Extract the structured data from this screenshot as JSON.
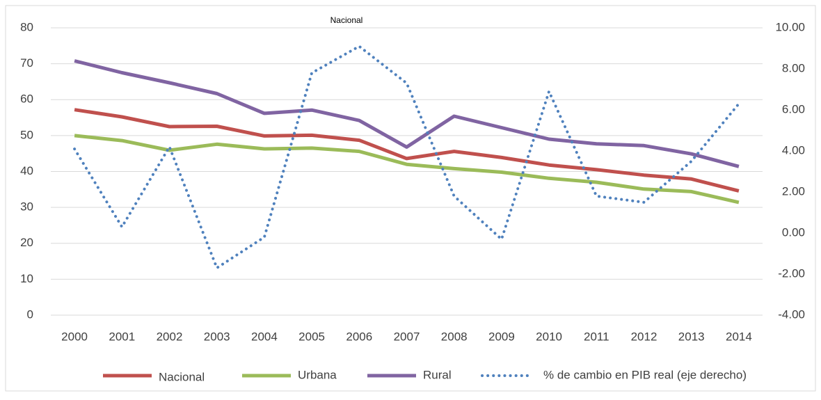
{
  "chart_data": {
    "type": "line",
    "title": "Nacional",
    "categories": [
      "2000",
      "2001",
      "2002",
      "2003",
      "2004",
      "2005",
      "2006",
      "2007",
      "2008",
      "2009",
      "2010",
      "2011",
      "2012",
      "2013",
      "2014"
    ],
    "series": [
      {
        "name": "Nacional",
        "color": "#c0504d",
        "style": "solid",
        "values": [
          57.2,
          55.2,
          52.5,
          52.6,
          49.9,
          50.1,
          48.7,
          43.6,
          45.6,
          43.9,
          41.8,
          40.5,
          39.0,
          37.9,
          34.6
        ]
      },
      {
        "name": "Urbana",
        "color": "#9bbb59",
        "style": "solid",
        "values": [
          50.0,
          48.6,
          45.9,
          47.6,
          46.3,
          46.5,
          45.6,
          42.0,
          40.8,
          39.8,
          38.1,
          37.0,
          35.1,
          34.4,
          31.4
        ]
      },
      {
        "name": "Rural",
        "color": "#8064a2",
        "style": "solid",
        "values": [
          70.8,
          67.5,
          64.7,
          61.7,
          56.2,
          57.1,
          54.2,
          46.8,
          55.4,
          52.2,
          49.0,
          47.7,
          47.2,
          44.9,
          41.4
        ]
      },
      {
        "name": "% de cambio en PIB real (eje derecho)",
        "color": "#4f81bd",
        "style": "dotted",
        "axis": "y2",
        "values": [
          4.1,
          0.3,
          4.2,
          -1.7,
          -0.2,
          7.8,
          9.1,
          7.3,
          1.8,
          -0.3,
          6.9,
          1.8,
          1.5,
          3.5,
          6.3
        ]
      }
    ],
    "ylim": [
      0,
      80
    ],
    "yticks": [
      0,
      10,
      20,
      30,
      40,
      50,
      60,
      70,
      80
    ],
    "y2lim": [
      -4,
      10
    ],
    "y2ticks": [
      {
        "value": -4,
        "label": "-4.00"
      },
      {
        "value": -2,
        "label": "-2.00"
      },
      {
        "value": 0,
        "label": "0.00"
      },
      {
        "value": 2,
        "label": "2.00"
      },
      {
        "value": 4,
        "label": "4.00"
      },
      {
        "value": 6,
        "label": "6.00"
      },
      {
        "value": 8,
        "label": "8.00"
      },
      {
        "value": 10,
        "label": "10.00"
      }
    ],
    "grid": true,
    "legend": "bottom"
  }
}
